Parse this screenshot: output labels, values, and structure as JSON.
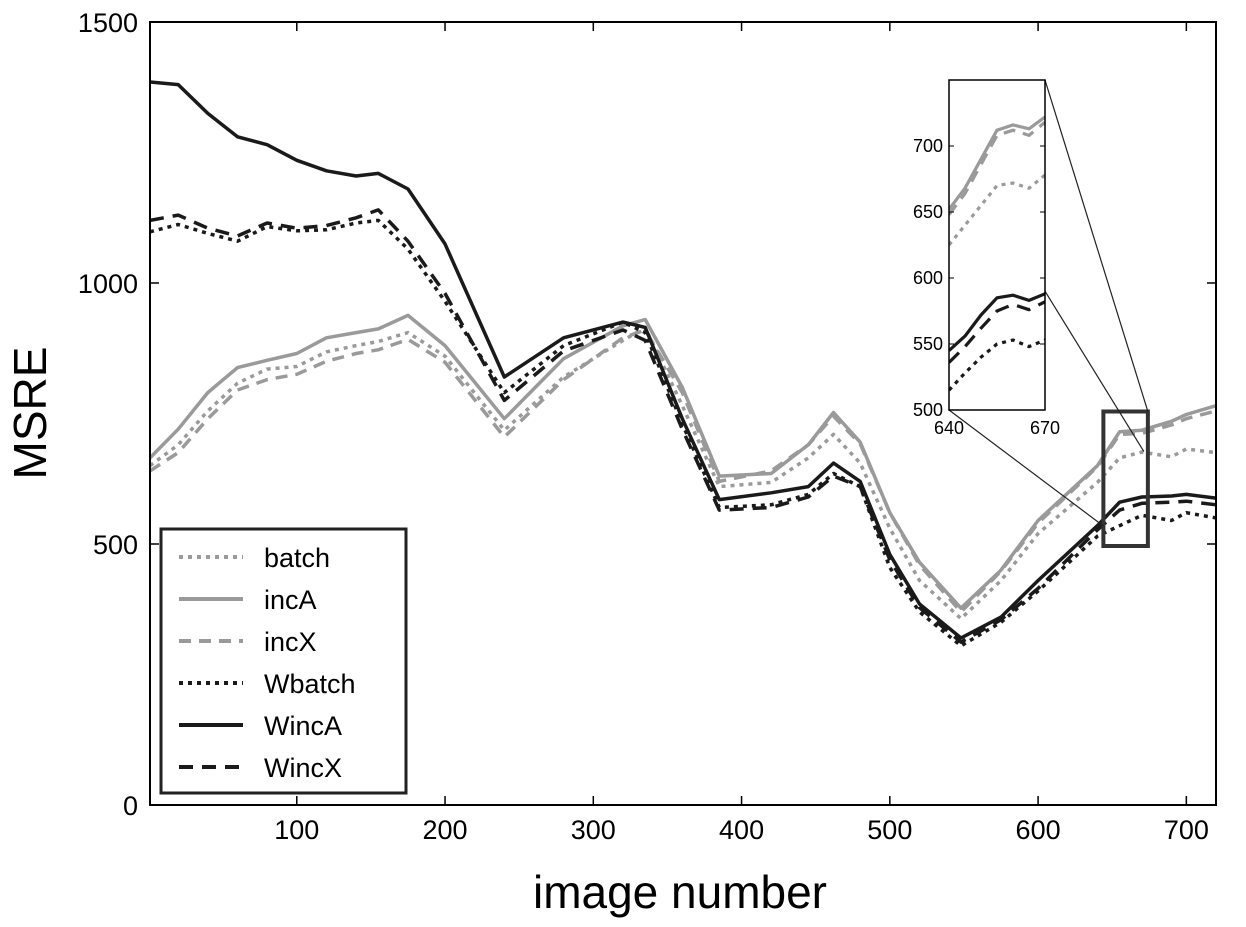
{
  "chart_data": {
    "type": "line",
    "xlabel": "image number",
    "ylabel": "MSRE",
    "xlim": [
      1,
      720
    ],
    "ylim": [
      0,
      1500
    ],
    "xticks": [
      100,
      200,
      300,
      400,
      500,
      600,
      700
    ],
    "yticks": [
      0,
      500,
      1000,
      1500
    ],
    "grid": false,
    "legend": {
      "position": "bottom-left"
    },
    "series": [
      {
        "name": "batch",
        "color": "#9a9a9a",
        "dash": "4,5",
        "width": 3.5,
        "x": [
          1,
          20,
          40,
          60,
          80,
          100,
          120,
          140,
          155,
          175,
          200,
          240,
          280,
          320,
          335,
          360,
          385,
          420,
          445,
          462,
          480,
          500,
          520,
          548,
          575,
          600,
          640,
          655,
          670,
          690,
          700,
          720
        ],
        "y": [
          650,
          690,
          755,
          808,
          835,
          840,
          868,
          880,
          888,
          905,
          860,
          718,
          820,
          890,
          915,
          765,
          610,
          618,
          665,
          710,
          655,
          530,
          430,
          357,
          430,
          520,
          618,
          665,
          676,
          667,
          682,
          675
        ]
      },
      {
        "name": "incA",
        "color": "#9a9a9a",
        "dash": "",
        "width": 3.5,
        "x": [
          1,
          20,
          40,
          60,
          80,
          100,
          120,
          140,
          155,
          175,
          200,
          240,
          280,
          320,
          335,
          360,
          385,
          420,
          445,
          462,
          480,
          500,
          520,
          548,
          575,
          600,
          640,
          655,
          670,
          690,
          700,
          720
        ],
        "y": [
          665,
          720,
          790,
          838,
          852,
          865,
          895,
          905,
          912,
          938,
          880,
          740,
          855,
          918,
          930,
          800,
          630,
          635,
          690,
          752,
          695,
          560,
          465,
          377,
          450,
          545,
          650,
          715,
          718,
          735,
          748,
          765
        ]
      },
      {
        "name": "incX",
        "color": "#9a9a9a",
        "dash": "12,8",
        "width": 3.5,
        "x": [
          1,
          20,
          40,
          60,
          80,
          100,
          120,
          140,
          155,
          175,
          200,
          240,
          280,
          320,
          335,
          360,
          385,
          420,
          445,
          462,
          480,
          500,
          520,
          548,
          575,
          600,
          640,
          655,
          670,
          690,
          700,
          720
        ],
        "y": [
          640,
          675,
          740,
          795,
          815,
          825,
          850,
          865,
          872,
          892,
          848,
          705,
          815,
          895,
          910,
          790,
          620,
          640,
          690,
          745,
          692,
          560,
          460,
          370,
          448,
          540,
          648,
          710,
          712,
          728,
          740,
          755
        ]
      },
      {
        "name": "Wbatch",
        "color": "#1a1a1a",
        "dash": "4,5",
        "width": 3.5,
        "x": [
          1,
          20,
          40,
          60,
          80,
          100,
          120,
          140,
          155,
          175,
          200,
          240,
          280,
          320,
          335,
          360,
          385,
          420,
          445,
          462,
          480,
          500,
          520,
          548,
          575,
          600,
          640,
          655,
          670,
          690,
          700,
          720
        ],
        "y": [
          1098,
          1112,
          1095,
          1080,
          1108,
          1100,
          1102,
          1115,
          1120,
          1065,
          965,
          790,
          880,
          925,
          905,
          730,
          570,
          575,
          595,
          635,
          610,
          455,
          370,
          305,
          350,
          410,
          515,
          535,
          555,
          545,
          560,
          550
        ]
      },
      {
        "name": "WincA",
        "color": "#1a1a1a",
        "dash": "",
        "width": 3.5,
        "x": [
          1,
          20,
          40,
          60,
          80,
          100,
          120,
          140,
          155,
          175,
          200,
          240,
          280,
          320,
          335,
          360,
          385,
          420,
          445,
          462,
          480,
          500,
          520,
          548,
          575,
          600,
          640,
          655,
          670,
          690,
          700,
          720
        ],
        "y": [
          1385,
          1380,
          1325,
          1280,
          1265,
          1235,
          1215,
          1205,
          1210,
          1180,
          1075,
          820,
          895,
          925,
          915,
          740,
          585,
          598,
          610,
          655,
          620,
          480,
          385,
          320,
          360,
          430,
          535,
          580,
          590,
          592,
          595,
          588
        ]
      },
      {
        "name": "WincX",
        "color": "#1a1a1a",
        "dash": "14,9",
        "width": 3.5,
        "x": [
          1,
          20,
          40,
          60,
          80,
          100,
          120,
          140,
          155,
          175,
          200,
          240,
          280,
          320,
          335,
          360,
          385,
          420,
          445,
          462,
          480,
          500,
          520,
          548,
          575,
          600,
          640,
          655,
          670,
          690,
          700,
          720
        ],
        "y": [
          1120,
          1130,
          1105,
          1090,
          1115,
          1105,
          1110,
          1125,
          1140,
          1080,
          980,
          775,
          870,
          910,
          890,
          720,
          565,
          570,
          590,
          630,
          610,
          470,
          378,
          312,
          355,
          415,
          527,
          565,
          578,
          580,
          582,
          575
        ]
      }
    ],
    "inset": {
      "xlim": [
        640,
        670
      ],
      "ylim": [
        500,
        750
      ],
      "xticks": [
        640,
        670
      ],
      "yticks": [
        500,
        550,
        600,
        650,
        700
      ],
      "series": [
        {
          "name": "batch",
          "x": [
            640,
            645,
            650,
            655,
            660,
            665,
            670
          ],
          "y": [
            625,
            640,
            655,
            670,
            672,
            668,
            678
          ]
        },
        {
          "name": "incA",
          "x": [
            640,
            645,
            650,
            655,
            660,
            665,
            670
          ],
          "y": [
            652,
            668,
            690,
            712,
            716,
            713,
            722
          ]
        },
        {
          "name": "incX",
          "x": [
            640,
            645,
            650,
            655,
            660,
            665,
            670
          ],
          "y": [
            648,
            664,
            686,
            708,
            712,
            708,
            718
          ]
        },
        {
          "name": "Wbatch",
          "x": [
            640,
            645,
            650,
            655,
            660,
            665,
            670
          ],
          "y": [
            515,
            528,
            540,
            550,
            553,
            548,
            553
          ]
        },
        {
          "name": "WincA",
          "x": [
            640,
            645,
            650,
            655,
            660,
            665,
            670
          ],
          "y": [
            545,
            556,
            572,
            585,
            587,
            583,
            588
          ]
        },
        {
          "name": "WincX",
          "x": [
            640,
            645,
            650,
            655,
            660,
            665,
            670
          ],
          "y": [
            536,
            548,
            562,
            575,
            580,
            576,
            582
          ]
        }
      ]
    }
  }
}
